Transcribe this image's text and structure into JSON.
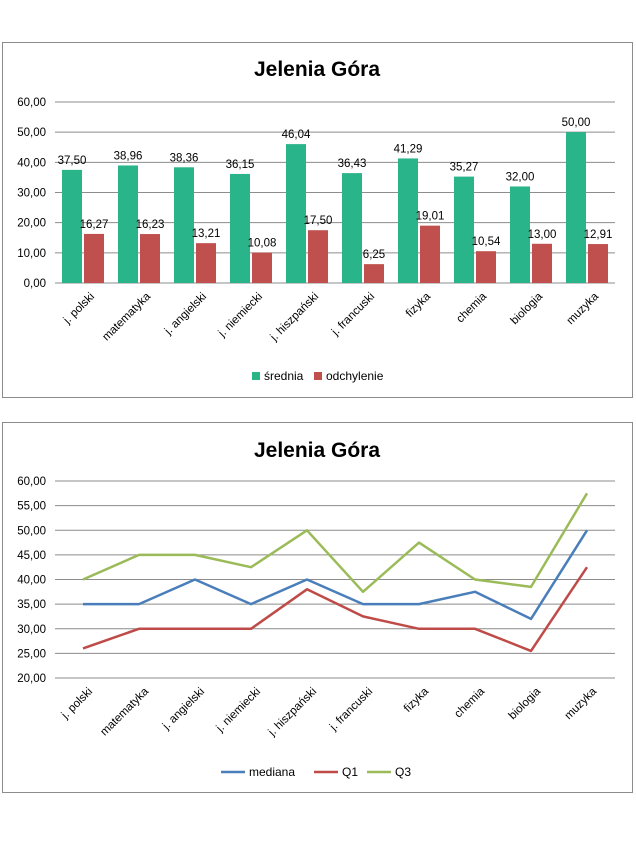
{
  "chart_data": [
    {
      "type": "bar",
      "title": "Jelenia Góra",
      "categories": [
        "j. polski",
        "matematyka",
        "j. angielski",
        "j. niemiecki",
        "j. hiszpański",
        "j. francuski",
        "fizyka",
        "chemia",
        "biologia",
        "muzyka"
      ],
      "series": [
        {
          "name": "średnia",
          "color": "#2ab48a",
          "values": [
            37.5,
            38.96,
            38.36,
            36.15,
            46.04,
            36.43,
            41.29,
            35.27,
            32.0,
            50.0
          ],
          "labels": [
            "37,50",
            "38,96",
            "38,36",
            "36,15",
            "46,04",
            "36,43",
            "41,29",
            "35,27",
            "32,00",
            "50,00"
          ]
        },
        {
          "name": "odchylenie",
          "color": "#c0504d",
          "values": [
            16.27,
            16.23,
            13.21,
            10.08,
            17.5,
            6.25,
            19.01,
            10.54,
            13.0,
            12.91
          ],
          "labels": [
            "16,27",
            "16,23",
            "13,21",
            "10,08",
            "17,50",
            "6,25",
            "19,01",
            "10,54",
            "13,00",
            "12,91"
          ]
        }
      ],
      "ylim": [
        0,
        60
      ],
      "yticks": [
        0,
        10,
        20,
        30,
        40,
        50,
        60
      ],
      "ytick_labels": [
        "0,00",
        "10,00",
        "20,00",
        "30,00",
        "40,00",
        "50,00",
        "60,00"
      ],
      "grid": true,
      "legend_position": "bottom"
    },
    {
      "type": "line",
      "title": "Jelenia Góra",
      "categories": [
        "j. polski",
        "matematyka",
        "j. angielski",
        "j. niemiecki",
        "j. hiszpański",
        "j. francuski",
        "fizyka",
        "chemia",
        "biologia",
        "muzyka"
      ],
      "series": [
        {
          "name": "mediana",
          "color": "#4a7ebb",
          "values": [
            35,
            35,
            40,
            35,
            40,
            35,
            35,
            37.5,
            32,
            50
          ]
        },
        {
          "name": "Q1",
          "color": "#be4b48",
          "values": [
            26,
            30,
            30,
            30,
            38,
            32.5,
            30,
            30,
            25.5,
            42.5
          ]
        },
        {
          "name": "Q3",
          "color": "#9bbb59",
          "values": [
            40,
            45,
            45,
            42.5,
            50,
            37.5,
            47.5,
            40,
            38.5,
            57.5
          ]
        }
      ],
      "ylim": [
        20,
        60
      ],
      "yticks": [
        20,
        25,
        30,
        35,
        40,
        45,
        50,
        55,
        60
      ],
      "ytick_labels": [
        "20,00",
        "25,00",
        "30,00",
        "35,00",
        "40,00",
        "45,00",
        "50,00",
        "55,00",
        "60,00"
      ],
      "grid": true,
      "legend_position": "bottom"
    }
  ]
}
